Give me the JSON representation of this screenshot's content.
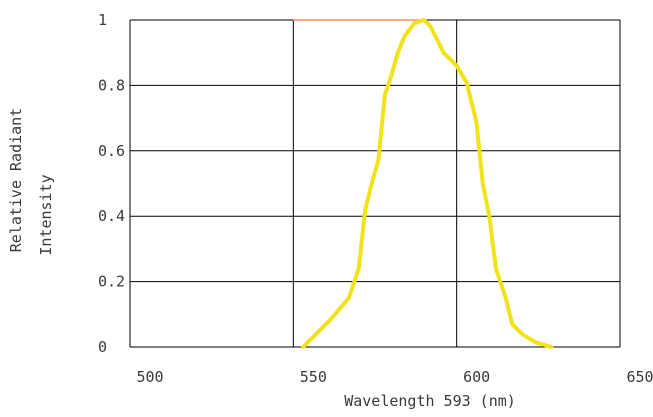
{
  "chart_data": {
    "type": "line",
    "title": "",
    "xlabel": "Wavelength 593  (nm)",
    "ylabel_lines": [
      "Relative Radiant",
      "Intensity"
    ],
    "xlim": [
      500,
      650
    ],
    "ylim": [
      0,
      1
    ],
    "x_ticks": [
      500,
      550,
      600,
      650
    ],
    "x_tick_labels": [
      "500",
      "550",
      "600",
      "650"
    ],
    "y_ticks": [
      0,
      0.2,
      0.4,
      0.6,
      0.8,
      1
    ],
    "y_tick_labels": [
      "0",
      "0.2",
      "0.4",
      "0.6",
      "0.8",
      "1"
    ],
    "grid": true,
    "series": [
      {
        "color": "#f2e21c",
        "x": [
          553,
          556,
          561,
          567,
          570,
          572,
          574,
          576,
          578,
          580,
          582,
          584,
          587,
          590,
          592,
          594,
          596,
          600,
          603,
          606,
          608,
          610,
          612,
          615,
          617,
          620,
          624,
          629
        ],
        "y": [
          0.0,
          0.03,
          0.08,
          0.15,
          0.24,
          0.42,
          0.5,
          0.57,
          0.77,
          0.83,
          0.9,
          0.95,
          0.99,
          1.0,
          0.98,
          0.94,
          0.9,
          0.86,
          0.81,
          0.69,
          0.5,
          0.4,
          0.24,
          0.15,
          0.07,
          0.04,
          0.015,
          0.0
        ]
      }
    ],
    "reference_line": {
      "color": "#f5a98a",
      "x": [
        550,
        590
      ],
      "y": 1
    }
  }
}
